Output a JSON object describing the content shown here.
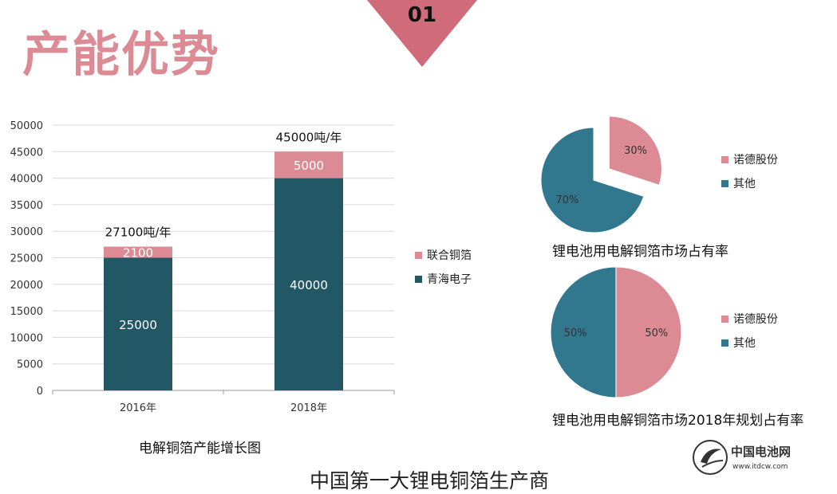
{
  "header": {
    "title": "产能优势",
    "badge_number": "01",
    "badge_color": "#d06b7a"
  },
  "colors": {
    "pink": "#dc8b95",
    "dark_teal": "#225766",
    "teal": "#31788e"
  },
  "chart_data": [
    {
      "type": "bar",
      "stacked": true,
      "categories": [
        "2016年",
        "2018年"
      ],
      "series": [
        {
          "name": "青海电子",
          "values": [
            25000,
            40000
          ],
          "color": "#225766"
        },
        {
          "name": "联合铜箔",
          "values": [
            2100,
            5000
          ],
          "color": "#dc8b95"
        }
      ],
      "totals_labels": [
        "27100吨/年",
        "45000吨/年"
      ],
      "ylim": [
        0,
        50000
      ],
      "yticks": [
        0,
        5000,
        10000,
        15000,
        20000,
        25000,
        30000,
        35000,
        40000,
        45000,
        50000
      ],
      "grid": true,
      "legend": "right",
      "caption": "电解铜箔产能增长图"
    },
    {
      "type": "pie",
      "labels": [
        "诺德股份",
        "其他"
      ],
      "values": [
        30,
        70
      ],
      "value_labels": [
        "30%",
        "70%"
      ],
      "exploded": "诺德股份",
      "colors": [
        "#dc8b95",
        "#31788e"
      ],
      "legend": "right",
      "caption": "锂电池用电解铜箔市场占有率"
    },
    {
      "type": "pie",
      "labels": [
        "诺德股份",
        "其他"
      ],
      "values": [
        50,
        50
      ],
      "value_labels": [
        "50%",
        "50%"
      ],
      "colors": [
        "#dc8b95",
        "#31788e"
      ],
      "legend": "right",
      "caption": "锂电池用电解铜箔市场2018年规划占有率"
    }
  ],
  "footer": {
    "headline": "中国第一大锂电铜箔生产商",
    "logo_text": "中国电池网",
    "logo_url": "www.itdcw.com"
  }
}
